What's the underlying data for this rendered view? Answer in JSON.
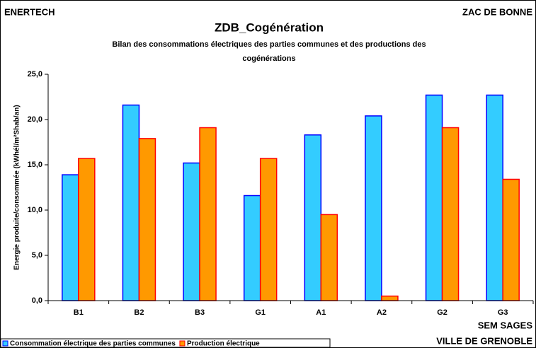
{
  "chart_data": {
    "type": "bar",
    "title": "ZDB_Cogénération",
    "subtitle": [
      "Bilan des consommations électriques des parties communes et des productions des",
      "cogénérations"
    ],
    "annotations": [
      "ENERTECH",
      "ZAC DE BONNE",
      "SEM SAGES",
      "VILLE DE GRENOBLE"
    ],
    "y_label": "Energie produite/consommée (kWhél/m²Shab/an)",
    "categories": [
      "B1",
      "B2",
      "B3",
      "G1",
      "A1",
      "A2",
      "G2",
      "G3"
    ],
    "series": [
      {
        "name": "Consommation électrique des parties communes",
        "color": "#33ccff",
        "edgecolor": "#0000ff",
        "values": [
          13.9,
          21.6,
          15.2,
          11.6,
          18.3,
          20.4,
          22.7,
          22.7
        ]
      },
      {
        "name": "Production électrique",
        "color": "#ff9900",
        "edgecolor": "#ff0000",
        "values": [
          15.7,
          17.9,
          19.1,
          15.7,
          9.5,
          0.5,
          19.1,
          13.4
        ]
      }
    ],
    "ylim": [
      0,
      25
    ],
    "yticks": [
      {
        "value": 0,
        "label": "0,0"
      },
      {
        "value": 5,
        "label": "5,0"
      },
      {
        "value": 10,
        "label": "10,0"
      },
      {
        "value": 15,
        "label": "15,0"
      },
      {
        "value": 20,
        "label": "20,0"
      },
      {
        "value": 25,
        "label": "25,0"
      }
    ],
    "grid": false
  }
}
